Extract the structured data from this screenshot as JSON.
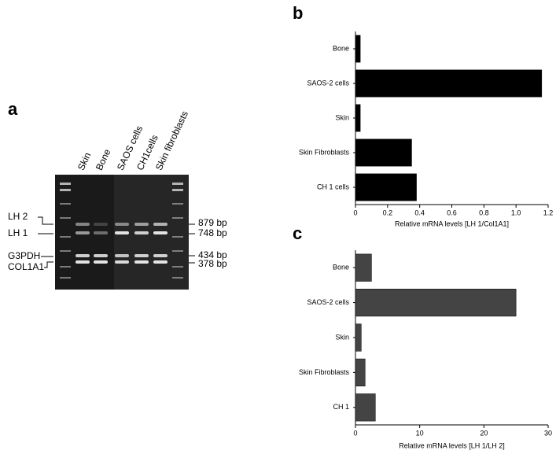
{
  "gel": {
    "panel": "a",
    "lanes": [
      "Skin",
      "Bone",
      "SAOS cells",
      "CH1cells",
      "Skin fibroblasts"
    ],
    "left_labels": [
      "LH 2",
      "LH 1",
      "G3PDH",
      "COL1A1"
    ],
    "right_labels": [
      "879 bp",
      "748 bp",
      "434 bp",
      "378 bp"
    ]
  },
  "chart_data": [
    {
      "type": "hbar",
      "panel": "b",
      "xlabel": "Relative mRNA levels [LH 1/Col1A1]",
      "categories": [
        "Bone",
        "SAOS-2 cells",
        "Skin",
        "Skin Fibroblasts",
        "CH 1 cells"
      ],
      "values": [
        0.03,
        1.16,
        0.03,
        0.35,
        0.38
      ],
      "color": "#000000",
      "xlim": [
        0,
        1.2
      ],
      "xticks": [
        0,
        0.2,
        0.4,
        0.6,
        0.8,
        {
          "value": 1,
          "label": "1.0"
        },
        1.2
      ]
    },
    {
      "type": "hbar",
      "panel": "c",
      "xlabel": "Relative mRNA levels [LH 1/LH 2]",
      "categories": [
        "Bone",
        "SAOS-2 cells",
        "Skin",
        "Skin Fibroblasts",
        "CH 1"
      ],
      "values": [
        2.5,
        25,
        0.9,
        1.5,
        3.1
      ],
      "color": "#444444",
      "xlim": [
        0,
        30
      ],
      "xticks": [
        0,
        10,
        20,
        30
      ]
    }
  ]
}
